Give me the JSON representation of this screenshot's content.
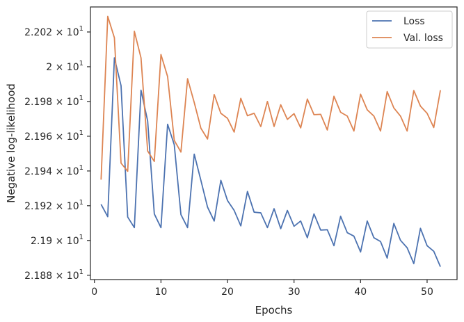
{
  "chart_data": {
    "type": "line",
    "xlabel": "Epochs",
    "ylabel": "Negative log-likelihood",
    "xlim": [
      -0.6,
      54.5
    ],
    "ylim": [
      21.8775,
      22.0344
    ],
    "xticks": [
      0,
      10,
      20,
      30,
      40,
      50
    ],
    "yticks": [
      {
        "value": 21.88,
        "label": "2.188 × 10"
      },
      {
        "value": 21.9,
        "label": "2.19 × 10"
      },
      {
        "value": 21.92,
        "label": "2.192 × 10"
      },
      {
        "value": 21.94,
        "label": "2.194 × 10"
      },
      {
        "value": 21.96,
        "label": "2.196 × 10"
      },
      {
        "value": 21.98,
        "label": "2.198 × 10"
      },
      {
        "value": 22.0,
        "label": "2 × 10"
      },
      {
        "value": 22.02,
        "label": "2.202 × 10"
      }
    ],
    "ytick_exponent": "1",
    "grid": false,
    "legend_position": "top-right",
    "x": [
      1,
      2,
      3,
      4,
      5,
      6,
      7,
      8,
      9,
      10,
      11,
      12,
      13,
      14,
      15,
      16,
      17,
      18,
      19,
      20,
      21,
      22,
      23,
      24,
      25,
      26,
      27,
      28,
      29,
      30,
      31,
      32,
      33,
      34,
      35,
      36,
      37,
      38,
      39,
      40,
      41,
      42,
      43,
      44,
      45,
      46,
      47,
      48,
      49,
      50,
      51,
      52
    ],
    "series": [
      {
        "name": "Loss",
        "color": "#4c72b0",
        "values": [
          21.9208,
          21.9137,
          22.0051,
          21.9891,
          21.9135,
          21.9074,
          21.9865,
          21.9688,
          21.9153,
          21.9074,
          21.9669,
          21.9551,
          21.9149,
          21.9074,
          21.9497,
          21.9346,
          21.9192,
          21.9112,
          21.9346,
          21.923,
          21.9173,
          21.9084,
          21.9282,
          21.9163,
          21.9159,
          21.9074,
          21.9183,
          21.9068,
          21.9173,
          21.9082,
          21.9112,
          21.9016,
          21.9153,
          21.906,
          21.9062,
          21.897,
          21.9139,
          21.9045,
          21.9025,
          21.8934,
          21.9112,
          21.9016,
          21.8994,
          21.8899,
          21.9098,
          21.9001,
          21.8958,
          21.8867,
          21.907,
          21.897,
          21.8938,
          21.8849
        ]
      },
      {
        "name": "Val. loss",
        "color": "#dd8452",
        "values": [
          21.935,
          22.029,
          22.0167,
          21.9445,
          21.9398,
          22.0204,
          22.0051,
          21.9515,
          21.9455,
          22.007,
          21.9943,
          21.9576,
          21.9509,
          21.9931,
          21.9794,
          21.9646,
          21.9584,
          21.984,
          21.9732,
          21.9703,
          21.9624,
          21.9818,
          21.9718,
          21.9732,
          21.9656,
          21.98,
          21.9656,
          21.9781,
          21.9697,
          21.973,
          21.9648,
          21.9814,
          21.9724,
          21.9726,
          21.9636,
          21.983,
          21.9738,
          21.9716,
          21.963,
          21.9842,
          21.9752,
          21.9716,
          21.963,
          21.9857,
          21.9763,
          21.9716,
          21.963,
          21.9863,
          21.9773,
          21.9732,
          21.965,
          21.9865
        ]
      }
    ]
  }
}
